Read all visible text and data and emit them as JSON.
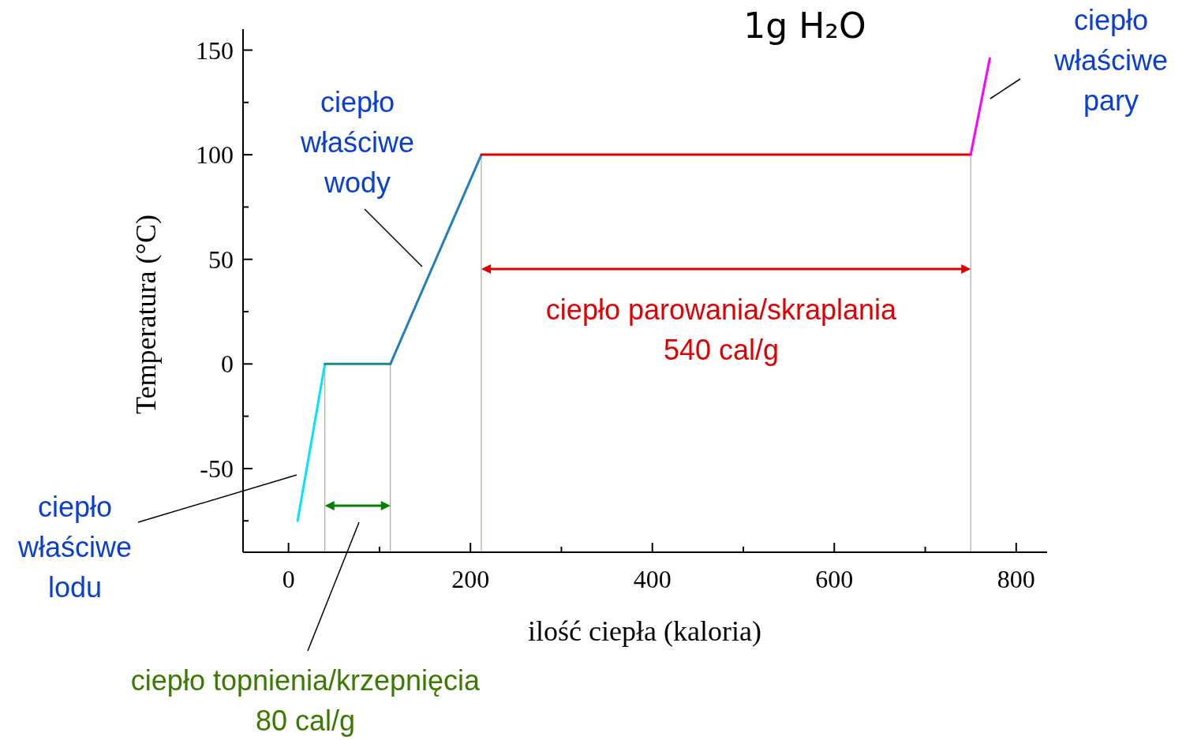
{
  "chart_data": {
    "type": "line",
    "title": "1g H₂O",
    "xlabel": "ilość ciepła (kaloria)",
    "ylabel": "Temperatura (°C)",
    "xlim": [
      -50,
      834
    ],
    "ylim": [
      -90,
      160
    ],
    "xticks": [
      0,
      {
        "value": 100,
        "label": null
      },
      200,
      {
        "value": 300,
        "label": null
      },
      400,
      {
        "value": 500,
        "label": null
      },
      600,
      {
        "value": 700,
        "label": null
      },
      800
    ],
    "yticks": [
      {
        "value": -75,
        "label": null
      },
      -50,
      {
        "value": -25,
        "label": null
      },
      0,
      {
        "value": 25,
        "label": null
      },
      50,
      {
        "value": 75,
        "label": null
      },
      100,
      {
        "value": 125,
        "label": null
      },
      150
    ],
    "marker": "none",
    "line_style": "solid",
    "series": [
      {
        "color": "#00e5ff",
        "x": [
          10,
          40
        ],
        "values": [
          -75,
          0
        ]
      },
      {
        "color": "#1a8a8a",
        "x": [
          40,
          112
        ],
        "values": [
          0,
          0
        ]
      },
      {
        "color": "#1f7fc0",
        "x": [
          112,
          212
        ],
        "values": [
          0,
          100
        ]
      },
      {
        "color": "#e00000",
        "x": [
          212,
          750
        ],
        "values": [
          100,
          100
        ]
      },
      {
        "color": "#ff00ff",
        "x": [
          750,
          771
        ],
        "values": [
          100,
          146
        ]
      }
    ],
    "ref_lines": [
      {
        "axis": "x",
        "value": 40,
        "color": "#9a9a80"
      },
      {
        "axis": "x",
        "value": 112,
        "color": "#9a9a80"
      },
      {
        "axis": "x",
        "value": 212,
        "color": "#9a9a80"
      },
      {
        "axis": "x",
        "value": 750,
        "color": "#9a9a80"
      }
    ],
    "annotations": [
      "ciepło\nwłaściwe\nlodu",
      "ciepło\nwłaściwe\nwody",
      "ciepło\nwłaściwe\npary",
      "ciepło topnienia/krzepnięcia\n80 cal/g",
      "ciepło parowania/skraplania\n540 cal/g"
    ]
  }
}
